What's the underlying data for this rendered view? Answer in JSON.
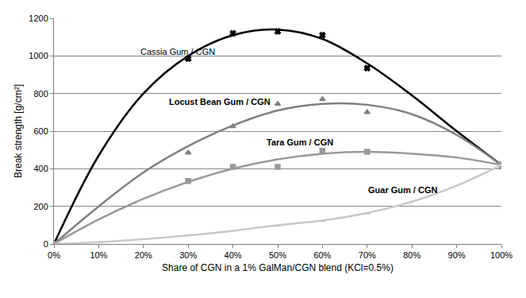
{
  "chart_data": {
    "type": "scatter",
    "x_label": "Share of CGN in a 1% GalMan/CGN blend (KCl=0.5%)",
    "y_label": "Break strength [g/cm²]",
    "xlim": [
      0,
      100
    ],
    "xticks": [
      {
        "value": 0,
        "label": "0%"
      },
      {
        "value": 10,
        "label": "10%"
      },
      {
        "value": 20,
        "label": "20%"
      },
      {
        "value": 30,
        "label": "30%"
      },
      {
        "value": 40,
        "label": "40%"
      },
      {
        "value": 50,
        "label": "50%"
      },
      {
        "value": 60,
        "label": "60%"
      },
      {
        "value": 70,
        "label": "70%"
      },
      {
        "value": 80,
        "label": "80%"
      },
      {
        "value": 90,
        "label": "90%"
      },
      {
        "value": 100,
        "label": "100%"
      }
    ],
    "ylim": [
      0,
      1200
    ],
    "yticks": [
      0,
      200,
      400,
      600,
      800,
      1000,
      1200
    ],
    "grid": true,
    "series": [
      {
        "name": "Cassia Gum / CGN",
        "type": "scatter",
        "color": "#000000",
        "marker": "x",
        "x": [
          0,
          30,
          40,
          50,
          60,
          70,
          100
        ],
        "values": [
          0,
          985,
          1120,
          1130,
          1110,
          935,
          420
        ]
      },
      {
        "type": "line",
        "color": "#000000",
        "line_style": "solid",
        "x": [
          0,
          10,
          20,
          30,
          40,
          50,
          60,
          70,
          80,
          90,
          100
        ],
        "values": [
          0,
          470,
          800,
          1000,
          1110,
          1140,
          1090,
          960,
          790,
          600,
          420
        ]
      },
      {
        "name": "Locust Bean Gum / CGN",
        "type": "scatter",
        "color": "#7f7f7f",
        "marker": "triangle",
        "x": [
          0,
          30,
          40,
          50,
          60,
          70,
          100
        ],
        "values": [
          0,
          485,
          625,
          745,
          770,
          700,
          420
        ]
      },
      {
        "type": "line",
        "color": "#7f7f7f",
        "line_style": "solid",
        "x": [
          0,
          10,
          20,
          30,
          40,
          50,
          60,
          70,
          80,
          90,
          100
        ],
        "values": [
          0,
          200,
          380,
          520,
          630,
          710,
          745,
          740,
          690,
          580,
          420
        ]
      },
      {
        "name": "Tara Gum / CGN",
        "type": "scatter",
        "color": "#999999",
        "marker": "square",
        "x": [
          0,
          30,
          40,
          50,
          60,
          70,
          100
        ],
        "values": [
          0,
          335,
          410,
          410,
          495,
          490,
          420
        ]
      },
      {
        "type": "line",
        "color": "#999999",
        "line_style": "solid",
        "x": [
          0,
          10,
          20,
          30,
          40,
          50,
          60,
          70,
          80,
          90,
          100
        ],
        "values": [
          0,
          130,
          240,
          330,
          400,
          450,
          480,
          490,
          480,
          460,
          420
        ]
      },
      {
        "name": "Guar Gum / CGN",
        "type": "scatter",
        "color": "#c8c8c8",
        "marker": "dash",
        "x": [
          0,
          30,
          40,
          50,
          60,
          70,
          100
        ],
        "values": [
          0,
          45,
          70,
          95,
          120,
          160,
          420
        ]
      },
      {
        "type": "line",
        "color": "#c8c8c8",
        "line_style": "solid",
        "x": [
          0,
          10,
          20,
          30,
          40,
          50,
          60,
          70,
          80,
          90,
          100
        ],
        "values": [
          0,
          10,
          25,
          45,
          70,
          100,
          125,
          165,
          225,
          310,
          420
        ]
      }
    ]
  }
}
